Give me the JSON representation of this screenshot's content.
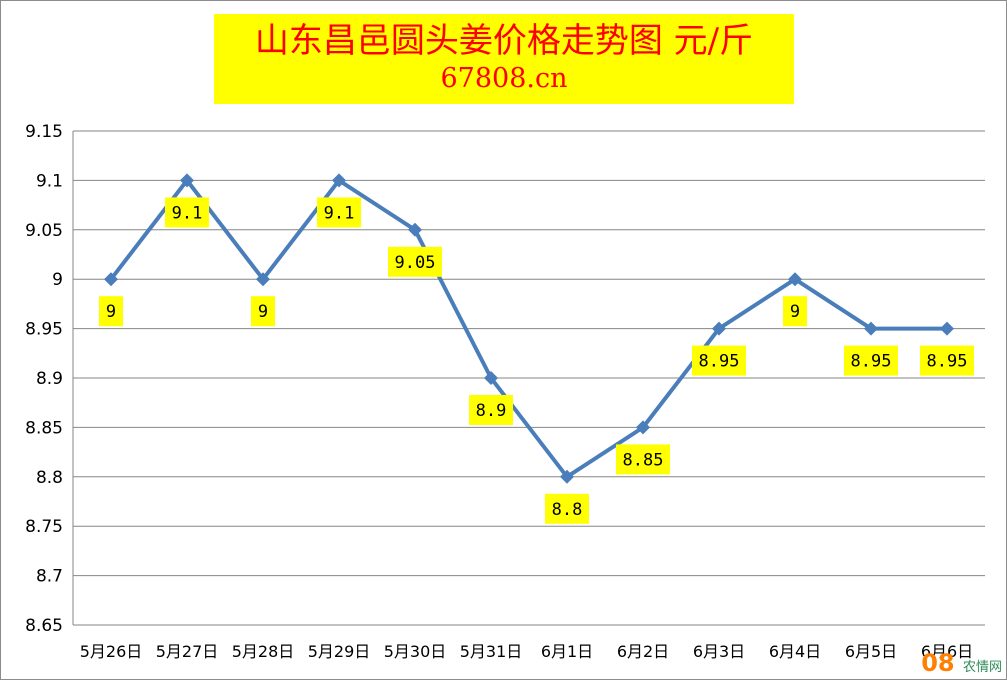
{
  "header": {
    "title": "山东昌邑圆头姜价格走势图 元/斤",
    "subtitle": "67808.cn"
  },
  "watermark": {
    "brand": "08",
    "text": "农情网"
  },
  "chart_data": {
    "type": "line",
    "title": "山东昌邑圆头姜价格走势图 元/斤",
    "subtitle": "67808.cn",
    "categories": [
      "5月26日",
      "5月27日",
      "5月28日",
      "5月29日",
      "5月30日",
      "5月31日",
      "6月1日",
      "6月2日",
      "6月3日",
      "6月4日",
      "6月5日",
      "6月6日"
    ],
    "series": [
      {
        "values": [
          9,
          9.1,
          9,
          9.1,
          9.05,
          8.9,
          8.8,
          8.85,
          8.95,
          9,
          8.95,
          8.95
        ]
      }
    ],
    "data_labels": [
      "9",
      "9.1",
      "9",
      "9.1",
      "9.05",
      "8.9",
      "8.8",
      "8.85",
      "8.95",
      "9",
      "8.95",
      "8.95"
    ],
    "ylim": [
      8.65,
      9.15
    ],
    "yticks": [
      "9.15",
      "9.1",
      "9.05",
      "9",
      "8.95",
      "8.9",
      "8.85",
      "8.8",
      "8.75",
      "8.7",
      "8.65"
    ],
    "grid": true,
    "legend": "none",
    "colors": {
      "line": "#4a7ebb",
      "label_bg": "#ffff00",
      "title": "#ff0000",
      "grid": "#868686"
    }
  }
}
